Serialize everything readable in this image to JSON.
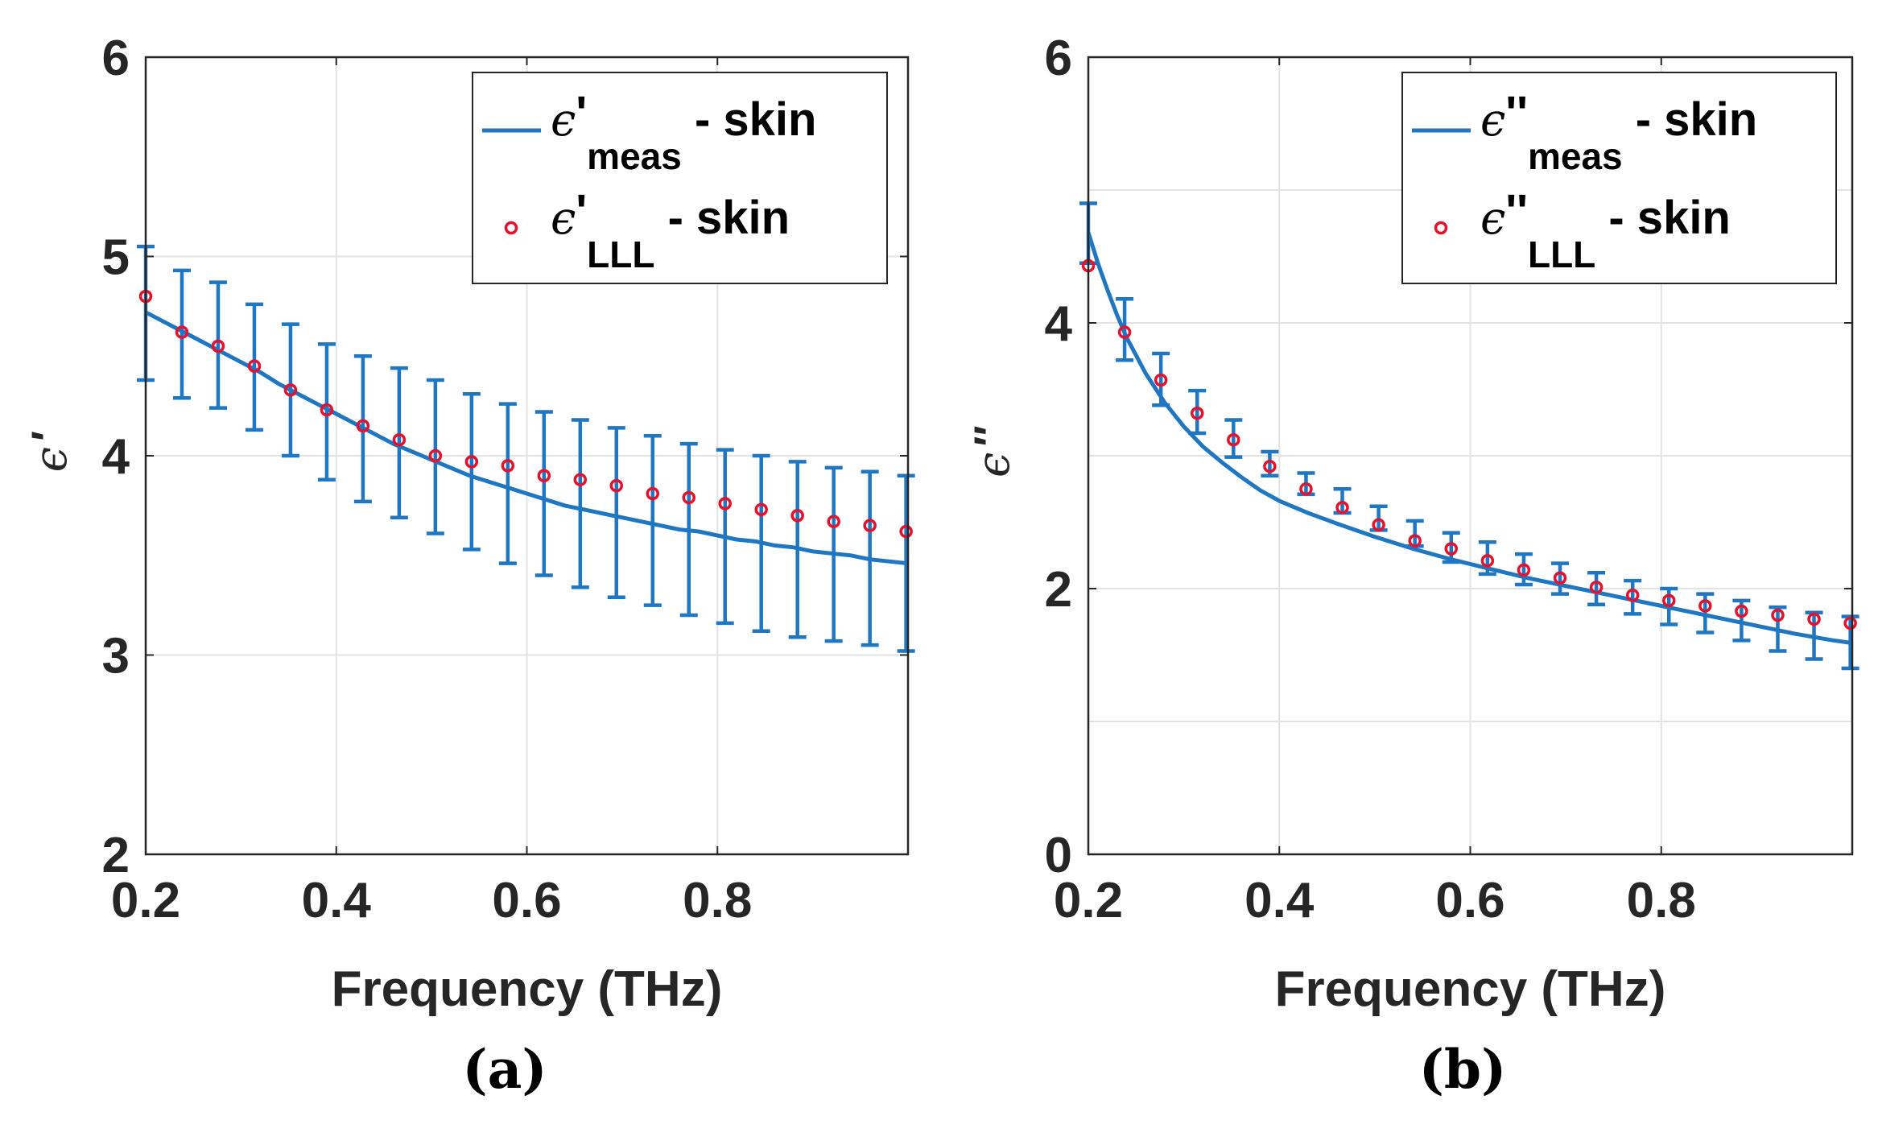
{
  "chart_data": [
    {
      "type": "line",
      "panel_label": "(a)",
      "xlabel": "Frequency (THz)",
      "ylabel": "ϵ",
      "ylabel_prime": "'",
      "xlim": [
        0.2,
        1.0
      ],
      "ylim": [
        2,
        6
      ],
      "xticks": [
        0.2,
        0.4,
        0.6,
        0.8
      ],
      "xtick_labels": [
        "0.2",
        "0.4",
        "0.6",
        "0.8"
      ],
      "yticks": [
        2,
        3,
        4,
        5,
        6
      ],
      "ytick_labels": [
        "2",
        "3",
        "4",
        "5",
        "6"
      ],
      "grid": true,
      "legend_position": "top-right",
      "colors": {
        "meas": "#1f77c4",
        "lll": "#e8112d"
      },
      "legend": [
        {
          "eps": "ϵ",
          "prime": "'",
          "sub": "meas",
          "suffix": " - skin"
        },
        {
          "eps": "ϵ",
          "prime": "'",
          "sub": "LLL",
          "suffix": " - skin"
        }
      ],
      "series": [
        {
          "name": "meas - skin",
          "style": "line",
          "x": [
            0.2,
            0.22,
            0.24,
            0.26,
            0.28,
            0.3,
            0.32,
            0.34,
            0.36,
            0.38,
            0.4,
            0.42,
            0.44,
            0.46,
            0.48,
            0.5,
            0.52,
            0.54,
            0.56,
            0.58,
            0.6,
            0.62,
            0.64,
            0.66,
            0.68,
            0.7,
            0.72,
            0.74,
            0.76,
            0.78,
            0.8,
            0.82,
            0.84,
            0.86,
            0.88,
            0.9,
            0.92,
            0.94,
            0.96,
            0.98,
            1.0
          ],
          "y": [
            4.72,
            4.67,
            4.62,
            4.57,
            4.52,
            4.47,
            4.42,
            4.36,
            4.31,
            4.26,
            4.21,
            4.16,
            4.11,
            4.06,
            4.02,
            3.98,
            3.94,
            3.9,
            3.87,
            3.84,
            3.81,
            3.78,
            3.75,
            3.73,
            3.71,
            3.69,
            3.67,
            3.65,
            3.63,
            3.62,
            3.6,
            3.58,
            3.57,
            3.55,
            3.54,
            3.52,
            3.51,
            3.5,
            3.48,
            3.47,
            3.46
          ]
        },
        {
          "name": "error bars",
          "style": "errorbar",
          "x": [
            0.2,
            0.238,
            0.276,
            0.314,
            0.352,
            0.39,
            0.428,
            0.466,
            0.504,
            0.542,
            0.58,
            0.618,
            0.656,
            0.694,
            0.732,
            0.77,
            0.808,
            0.846,
            0.884,
            0.922,
            0.96,
            0.998
          ],
          "ymin": [
            4.38,
            4.29,
            4.24,
            4.13,
            4.0,
            3.88,
            3.77,
            3.69,
            3.61,
            3.53,
            3.46,
            3.4,
            3.34,
            3.29,
            3.25,
            3.2,
            3.16,
            3.12,
            3.09,
            3.07,
            3.05,
            3.02
          ],
          "ymax": [
            5.05,
            4.93,
            4.87,
            4.76,
            4.66,
            4.56,
            4.5,
            4.44,
            4.38,
            4.31,
            4.26,
            4.22,
            4.18,
            4.14,
            4.1,
            4.06,
            4.03,
            4.0,
            3.97,
            3.94,
            3.92,
            3.9
          ]
        },
        {
          "name": "LLL - skin",
          "style": "markers",
          "x": [
            0.2,
            0.238,
            0.276,
            0.314,
            0.352,
            0.39,
            0.428,
            0.466,
            0.504,
            0.542,
            0.58,
            0.618,
            0.656,
            0.694,
            0.732,
            0.77,
            0.808,
            0.846,
            0.884,
            0.922,
            0.96,
            0.998
          ],
          "y": [
            4.8,
            4.62,
            4.55,
            4.45,
            4.33,
            4.23,
            4.15,
            4.08,
            4.0,
            3.97,
            3.95,
            3.9,
            3.88,
            3.85,
            3.81,
            3.79,
            3.76,
            3.73,
            3.7,
            3.67,
            3.65,
            3.62
          ]
        }
      ]
    },
    {
      "type": "line",
      "panel_label": "(b)",
      "xlabel": "Frequency (THz)",
      "ylabel": "ϵ",
      "ylabel_prime": "''",
      "xlim": [
        0.2,
        1.0
      ],
      "ylim": [
        0,
        6
      ],
      "xticks": [
        0.2,
        0.4,
        0.6,
        0.8
      ],
      "xtick_labels": [
        "0.2",
        "0.4",
        "0.6",
        "0.8"
      ],
      "yticks": [
        0,
        2,
        4,
        6
      ],
      "ytick_labels": [
        "0",
        "2",
        "4",
        "6"
      ],
      "grid_yticks": [
        0,
        1,
        2,
        3,
        4,
        5,
        6
      ],
      "grid": true,
      "legend_position": "top-right",
      "colors": {
        "meas": "#1f77c4",
        "lll": "#e8112d"
      },
      "legend": [
        {
          "eps": "ϵ",
          "prime": "''",
          "sub": "meas",
          "suffix": " - skin"
        },
        {
          "eps": "ϵ",
          "prime": "''",
          "sub": "LLL",
          "suffix": " - skin"
        }
      ],
      "series": [
        {
          "name": "meas - skin",
          "style": "line",
          "x": [
            0.2,
            0.21,
            0.22,
            0.23,
            0.24,
            0.26,
            0.28,
            0.3,
            0.32,
            0.34,
            0.36,
            0.38,
            0.4,
            0.43,
            0.46,
            0.5,
            0.54,
            0.58,
            0.62,
            0.66,
            0.7,
            0.74,
            0.78,
            0.82,
            0.86,
            0.9,
            0.94,
            0.98,
            1.0
          ],
          "y": [
            4.68,
            4.45,
            4.25,
            4.06,
            3.89,
            3.62,
            3.4,
            3.22,
            3.07,
            2.95,
            2.84,
            2.74,
            2.66,
            2.57,
            2.49,
            2.39,
            2.3,
            2.22,
            2.15,
            2.08,
            2.02,
            1.96,
            1.9,
            1.84,
            1.78,
            1.72,
            1.66,
            1.61,
            1.59
          ]
        },
        {
          "name": "error bars",
          "style": "errorbar",
          "x": [
            0.2,
            0.238,
            0.276,
            0.314,
            0.352,
            0.39,
            0.428,
            0.466,
            0.504,
            0.542,
            0.58,
            0.618,
            0.656,
            0.694,
            0.732,
            0.77,
            0.808,
            0.846,
            0.884,
            0.922,
            0.96,
            0.998
          ],
          "ymin": [
            4.45,
            3.72,
            3.38,
            3.17,
            2.99,
            2.85,
            2.71,
            2.57,
            2.44,
            2.32,
            2.2,
            2.11,
            2.03,
            1.96,
            1.88,
            1.81,
            1.73,
            1.67,
            1.61,
            1.53,
            1.47,
            1.4
          ],
          "ymax": [
            4.9,
            4.18,
            3.77,
            3.49,
            3.27,
            3.03,
            2.87,
            2.75,
            2.62,
            2.51,
            2.42,
            2.35,
            2.26,
            2.19,
            2.12,
            2.06,
            2.0,
            1.96,
            1.91,
            1.86,
            1.82,
            1.79
          ]
        },
        {
          "name": "LLL - skin",
          "style": "markers",
          "x": [
            0.2,
            0.238,
            0.276,
            0.314,
            0.352,
            0.39,
            0.428,
            0.466,
            0.504,
            0.542,
            0.58,
            0.618,
            0.656,
            0.694,
            0.732,
            0.77,
            0.808,
            0.846,
            0.884,
            0.922,
            0.96,
            0.998
          ],
          "y": [
            4.43,
            3.93,
            3.57,
            3.32,
            3.12,
            2.92,
            2.75,
            2.61,
            2.48,
            2.36,
            2.3,
            2.21,
            2.14,
            2.08,
            2.01,
            1.95,
            1.91,
            1.87,
            1.83,
            1.8,
            1.77,
            1.74
          ]
        }
      ]
    }
  ]
}
